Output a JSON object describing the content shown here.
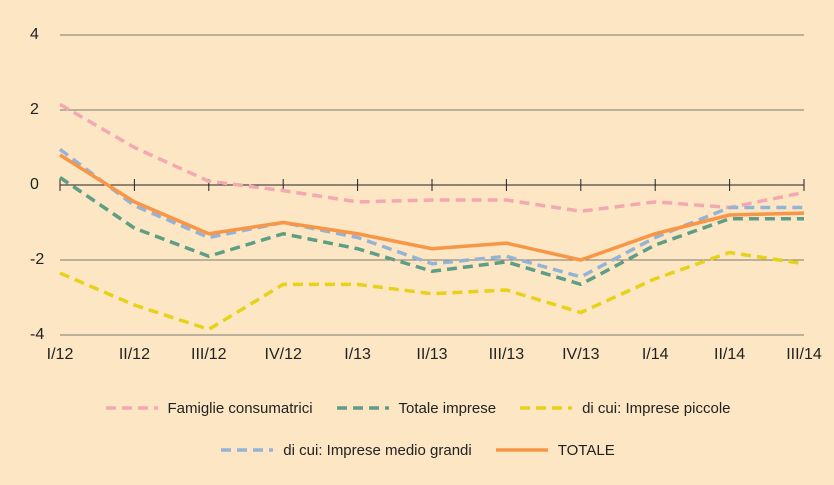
{
  "chart_data": {
    "type": "line",
    "categories": [
      "I/12",
      "II/12",
      "III/12",
      "IV/12",
      "I/13",
      "II/13",
      "III/13",
      "IV/13",
      "I/14",
      "II/14",
      "III/14"
    ],
    "ylim": [
      -4,
      4
    ],
    "yticks": [
      -4,
      -2,
      0,
      2,
      4
    ],
    "grid": true,
    "series": [
      {
        "name": "Famiglie consumatrici",
        "color": "#f4a9b2",
        "dashed": true,
        "values": [
          2.15,
          1.0,
          0.1,
          -0.15,
          -0.45,
          -0.4,
          -0.4,
          -0.7,
          -0.45,
          -0.6,
          -0.2
        ]
      },
      {
        "name": "Totale imprese",
        "color": "#5e9e85",
        "dashed": true,
        "values": [
          0.2,
          -1.15,
          -1.9,
          -1.3,
          -1.7,
          -2.3,
          -2.05,
          -2.65,
          -1.6,
          -0.9,
          -0.9
        ]
      },
      {
        "name": "di cui: Imprese piccole",
        "color": "#e6d21a",
        "dashed": true,
        "values": [
          -2.35,
          -3.2,
          -3.85,
          -2.65,
          -2.65,
          -2.9,
          -2.8,
          -3.4,
          -2.5,
          -1.8,
          -2.1
        ]
      },
      {
        "name": "di cui: Imprese medio grandi",
        "color": "#95b3d7",
        "dashed": true,
        "values": [
          0.95,
          -0.55,
          -1.4,
          -1.0,
          -1.4,
          -2.1,
          -1.9,
          -2.45,
          -1.4,
          -0.6,
          -0.6
        ]
      },
      {
        "name": "TOTALE",
        "color": "#f79646",
        "dashed": false,
        "values": [
          0.8,
          -0.45,
          -1.3,
          -1.0,
          -1.3,
          -1.7,
          -1.55,
          -2.0,
          -1.3,
          -0.8,
          -0.75
        ]
      }
    ]
  }
}
